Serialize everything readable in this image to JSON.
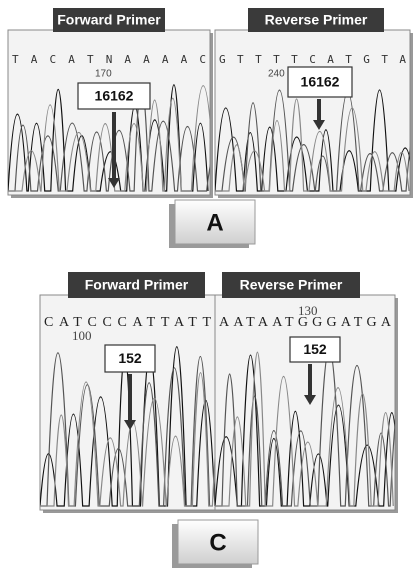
{
  "panels": [
    {
      "label": "A",
      "forward": {
        "title": "Forward Primer",
        "sequence": "T A C A T N A A A A C",
        "position": "170",
        "marker": "16162"
      },
      "reverse": {
        "title": "Reverse Primer",
        "sequence": "G T T T T C A T G T A",
        "position": "240",
        "marker": "16162"
      }
    },
    {
      "label": "C",
      "forward": {
        "title": "Forward Primer",
        "sequence": "CATCCCATTATT",
        "position": "100",
        "marker": "152"
      },
      "reverse": {
        "title": "Reverse Primer",
        "sequence": "AATAATGGGATGA",
        "position": "130",
        "marker": "152"
      }
    }
  ]
}
